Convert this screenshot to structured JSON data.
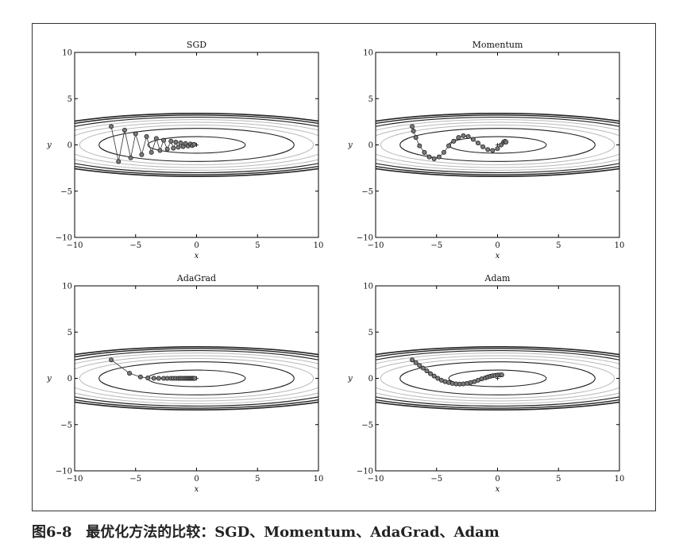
{
  "caption": {
    "number": "图6-8",
    "text": "最优化方法的比较：SGD、Momentum、AdaGrad、Adam"
  },
  "colors": {
    "axis": "#000000",
    "contour_dark": "#222222",
    "contour_light": "#b8b8b8",
    "path": "#444444",
    "marker_fill": "#7a7a7a",
    "marker_edge": "#222222"
  },
  "chart_data": [
    {
      "type": "line",
      "title": "SGD",
      "xlabel": "x",
      "ylabel": "y",
      "xlim": [
        -10,
        10
      ],
      "ylim": [
        -10,
        10
      ],
      "xticks": [
        "−10",
        "−5",
        "0",
        "5",
        "10"
      ],
      "yticks": [
        "10",
        "5",
        "0",
        "−5",
        "−10"
      ],
      "contours": "ellipses x²/20 + y² centered at origin",
      "minimum": [
        0,
        0
      ],
      "series": [
        {
          "x": [
            -7.0,
            -6.4,
            -5.9,
            -5.4,
            -5.0,
            -4.5,
            -4.1,
            -3.7,
            -3.3,
            -3.0,
            -2.7,
            -2.4,
            -2.1,
            -1.9,
            -1.7,
            -1.5,
            -1.3,
            -1.1,
            -0.9,
            -0.7,
            -0.5,
            -0.35,
            -0.2
          ],
          "y": [
            2.0,
            -1.8,
            1.6,
            -1.4,
            1.2,
            -1.05,
            0.9,
            -0.8,
            0.7,
            -0.6,
            0.5,
            -0.45,
            0.4,
            -0.35,
            0.3,
            -0.25,
            0.22,
            -0.18,
            0.15,
            -0.12,
            0.1,
            -0.07,
            0.05
          ]
        }
      ]
    },
    {
      "type": "line",
      "title": "Momentum",
      "xlabel": "x",
      "ylabel": "y",
      "xlim": [
        -10,
        10
      ],
      "ylim": [
        -10,
        10
      ],
      "xticks": [
        "−10",
        "−5",
        "0",
        "5",
        "10"
      ],
      "yticks": [
        "10",
        "5",
        "0",
        "−5",
        "−10"
      ],
      "contours": "ellipses x²/20 + y² centered at origin",
      "minimum": [
        0,
        0
      ],
      "series": [
        {
          "x": [
            -7.0,
            -6.9,
            -6.7,
            -6.4,
            -6.0,
            -5.6,
            -5.2,
            -4.8,
            -4.4,
            -4.0,
            -3.6,
            -3.2,
            -2.8,
            -2.4,
            -2.0,
            -1.6,
            -1.2,
            -0.8,
            -0.4,
            0.0,
            0.3,
            0.5,
            0.6,
            0.7
          ],
          "y": [
            2.0,
            1.5,
            0.8,
            -0.1,
            -0.8,
            -1.3,
            -1.5,
            -1.3,
            -0.8,
            -0.1,
            0.4,
            0.8,
            1.0,
            0.9,
            0.6,
            0.2,
            -0.2,
            -0.5,
            -0.6,
            -0.4,
            0.0,
            0.3,
            0.4,
            0.3
          ]
        }
      ]
    },
    {
      "type": "line",
      "title": "AdaGrad",
      "xlabel": "x",
      "ylabel": "y",
      "xlim": [
        -10,
        10
      ],
      "ylim": [
        -10,
        10
      ],
      "xticks": [
        "−10",
        "−5",
        "0",
        "5",
        "10"
      ],
      "yticks": [
        "10",
        "5",
        "0",
        "−5",
        "−10"
      ],
      "contours": "ellipses x²/20 + y² centered at origin",
      "minimum": [
        0,
        0
      ],
      "series": [
        {
          "x": [
            -7.0,
            -5.5,
            -4.6,
            -4.0,
            -3.5,
            -3.1,
            -2.7,
            -2.4,
            -2.1,
            -1.9,
            -1.7,
            -1.5,
            -1.35,
            -1.2,
            -1.05,
            -0.9,
            -0.78,
            -0.66,
            -0.55,
            -0.45,
            -0.35,
            -0.25,
            -0.15
          ],
          "y": [
            2.0,
            0.55,
            0.15,
            0.04,
            0.01,
            0.0,
            0.0,
            0.0,
            0.0,
            0.0,
            0.0,
            0.0,
            0.0,
            0.0,
            0.0,
            0.0,
            0.0,
            0.0,
            0.0,
            0.0,
            0.0,
            0.0,
            0.0
          ]
        }
      ]
    },
    {
      "type": "line",
      "title": "Adam",
      "xlabel": "x",
      "ylabel": "y",
      "xlim": [
        -10,
        10
      ],
      "ylim": [
        -10,
        10
      ],
      "xticks": [
        "−10",
        "−5",
        "0",
        "5",
        "10"
      ],
      "yticks": [
        "10",
        "5",
        "0",
        "−5",
        "−10"
      ],
      "contours": "ellipses x²/20 + y² centered at origin",
      "minimum": [
        0,
        0
      ],
      "series": [
        {
          "x": [
            -7.0,
            -6.7,
            -6.4,
            -6.1,
            -5.8,
            -5.5,
            -5.2,
            -4.9,
            -4.6,
            -4.3,
            -4.0,
            -3.7,
            -3.4,
            -3.1,
            -2.8,
            -2.5,
            -2.2,
            -1.9,
            -1.6,
            -1.3,
            -1.0,
            -0.8,
            -0.6,
            -0.4,
            -0.2,
            0.0,
            0.2,
            0.35
          ],
          "y": [
            2.0,
            1.7,
            1.4,
            1.1,
            0.8,
            0.5,
            0.25,
            0.0,
            -0.2,
            -0.35,
            -0.45,
            -0.55,
            -0.6,
            -0.62,
            -0.6,
            -0.55,
            -0.45,
            -0.35,
            -0.2,
            -0.05,
            0.05,
            0.15,
            0.22,
            0.28,
            0.32,
            0.35,
            0.37,
            0.38
          ]
        }
      ]
    }
  ]
}
